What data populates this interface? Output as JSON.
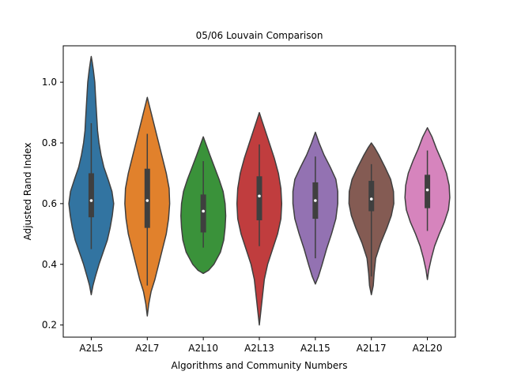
{
  "chart_data": {
    "type": "violin",
    "title": "05/06 Louvain Comparison",
    "xlabel": "Algorithms and Community Numbers",
    "ylabel": "Adjusted Rand Index",
    "ylim": [
      0.16,
      1.12
    ],
    "yticks": [
      0.2,
      0.4,
      0.6,
      0.8,
      1.0
    ],
    "ytick_labels": [
      "0.2",
      "0.4",
      "0.6",
      "0.8",
      "1.0"
    ],
    "grid": false,
    "legend": "none",
    "categories": [
      "A2L5",
      "A2L7",
      "A2L10",
      "A2L13",
      "A2L15",
      "A2L17",
      "A2L20"
    ],
    "series": [
      {
        "category": "A2L5",
        "color": "#3274a1",
        "min": 0.45,
        "q1": 0.555,
        "median": 0.61,
        "q3": 0.7,
        "max": 0.865,
        "profile": [
          [
            0.3,
            0.0
          ],
          [
            0.33,
            0.012
          ],
          [
            0.36,
            0.03
          ],
          [
            0.4,
            0.055
          ],
          [
            0.44,
            0.085
          ],
          [
            0.48,
            0.115
          ],
          [
            0.52,
            0.135
          ],
          [
            0.56,
            0.15
          ],
          [
            0.6,
            0.16
          ],
          [
            0.64,
            0.148
          ],
          [
            0.68,
            0.12
          ],
          [
            0.72,
            0.09
          ],
          [
            0.76,
            0.07
          ],
          [
            0.8,
            0.055
          ],
          [
            0.84,
            0.045
          ],
          [
            0.88,
            0.04
          ],
          [
            0.92,
            0.035
          ],
          [
            0.96,
            0.03
          ],
          [
            1.0,
            0.025
          ],
          [
            1.04,
            0.015
          ],
          [
            1.065,
            0.007
          ],
          [
            1.085,
            0.0
          ]
        ]
      },
      {
        "category": "A2L7",
        "color": "#e1812c",
        "min": 0.33,
        "q1": 0.52,
        "median": 0.61,
        "q3": 0.715,
        "max": 0.83,
        "profile": [
          [
            0.23,
            0.0
          ],
          [
            0.27,
            0.008
          ],
          [
            0.31,
            0.02
          ],
          [
            0.35,
            0.04
          ],
          [
            0.4,
            0.06
          ],
          [
            0.45,
            0.08
          ],
          [
            0.5,
            0.1
          ],
          [
            0.55,
            0.112
          ],
          [
            0.6,
            0.118
          ],
          [
            0.65,
            0.115
          ],
          [
            0.7,
            0.1
          ],
          [
            0.75,
            0.08
          ],
          [
            0.8,
            0.06
          ],
          [
            0.85,
            0.04
          ],
          [
            0.9,
            0.02
          ],
          [
            0.93,
            0.008
          ],
          [
            0.95,
            0.0
          ]
        ]
      },
      {
        "category": "A2L10",
        "color": "#3a923a",
        "min": 0.455,
        "q1": 0.505,
        "median": 0.575,
        "q3": 0.63,
        "max": 0.74,
        "profile": [
          [
            0.37,
            0.0
          ],
          [
            0.38,
            0.04
          ],
          [
            0.4,
            0.08
          ],
          [
            0.44,
            0.13
          ],
          [
            0.48,
            0.155
          ],
          [
            0.52,
            0.165
          ],
          [
            0.56,
            0.17
          ],
          [
            0.6,
            0.165
          ],
          [
            0.64,
            0.15
          ],
          [
            0.68,
            0.12
          ],
          [
            0.72,
            0.085
          ],
          [
            0.76,
            0.05
          ],
          [
            0.79,
            0.025
          ],
          [
            0.82,
            0.0
          ]
        ]
      },
      {
        "category": "A2L13",
        "color": "#c03d3e",
        "min": 0.46,
        "q1": 0.545,
        "median": 0.625,
        "q3": 0.69,
        "max": 0.795,
        "profile": [
          [
            0.2,
            0.0
          ],
          [
            0.25,
            0.01
          ],
          [
            0.3,
            0.02
          ],
          [
            0.35,
            0.03
          ],
          [
            0.4,
            0.05
          ],
          [
            0.45,
            0.08
          ],
          [
            0.5,
            0.11
          ],
          [
            0.55,
            0.13
          ],
          [
            0.6,
            0.135
          ],
          [
            0.65,
            0.13
          ],
          [
            0.7,
            0.115
          ],
          [
            0.75,
            0.09
          ],
          [
            0.8,
            0.06
          ],
          [
            0.85,
            0.03
          ],
          [
            0.88,
            0.012
          ],
          [
            0.9,
            0.0
          ]
        ]
      },
      {
        "category": "A2L15",
        "color": "#9372b2",
        "min": 0.42,
        "q1": 0.55,
        "median": 0.61,
        "q3": 0.67,
        "max": 0.755,
        "profile": [
          [
            0.335,
            0.0
          ],
          [
            0.36,
            0.025
          ],
          [
            0.4,
            0.055
          ],
          [
            0.45,
            0.09
          ],
          [
            0.5,
            0.13
          ],
          [
            0.55,
            0.165
          ],
          [
            0.6,
            0.18
          ],
          [
            0.64,
            0.18
          ],
          [
            0.68,
            0.165
          ],
          [
            0.72,
            0.12
          ],
          [
            0.76,
            0.07
          ],
          [
            0.8,
            0.03
          ],
          [
            0.835,
            0.0
          ]
        ]
      },
      {
        "category": "A2L17",
        "color": "#845b53",
        "min": 0.36,
        "q1": 0.575,
        "median": 0.615,
        "q3": 0.675,
        "max": 0.73,
        "profile": [
          [
            0.3,
            0.0
          ],
          [
            0.33,
            0.015
          ],
          [
            0.37,
            0.022
          ],
          [
            0.42,
            0.035
          ],
          [
            0.47,
            0.075
          ],
          [
            0.52,
            0.125
          ],
          [
            0.56,
            0.16
          ],
          [
            0.6,
            0.18
          ],
          [
            0.64,
            0.178
          ],
          [
            0.68,
            0.155
          ],
          [
            0.72,
            0.11
          ],
          [
            0.76,
            0.06
          ],
          [
            0.785,
            0.025
          ],
          [
            0.8,
            0.0
          ]
        ]
      },
      {
        "category": "A2L20",
        "color": "#d684bd",
        "min": 0.51,
        "q1": 0.585,
        "median": 0.645,
        "q3": 0.695,
        "max": 0.775,
        "profile": [
          [
            0.35,
            0.0
          ],
          [
            0.38,
            0.01
          ],
          [
            0.42,
            0.03
          ],
          [
            0.46,
            0.055
          ],
          [
            0.5,
            0.09
          ],
          [
            0.54,
            0.13
          ],
          [
            0.58,
            0.16
          ],
          [
            0.62,
            0.17
          ],
          [
            0.66,
            0.165
          ],
          [
            0.7,
            0.145
          ],
          [
            0.74,
            0.11
          ],
          [
            0.78,
            0.07
          ],
          [
            0.82,
            0.035
          ],
          [
            0.85,
            0.0
          ]
        ]
      }
    ]
  }
}
